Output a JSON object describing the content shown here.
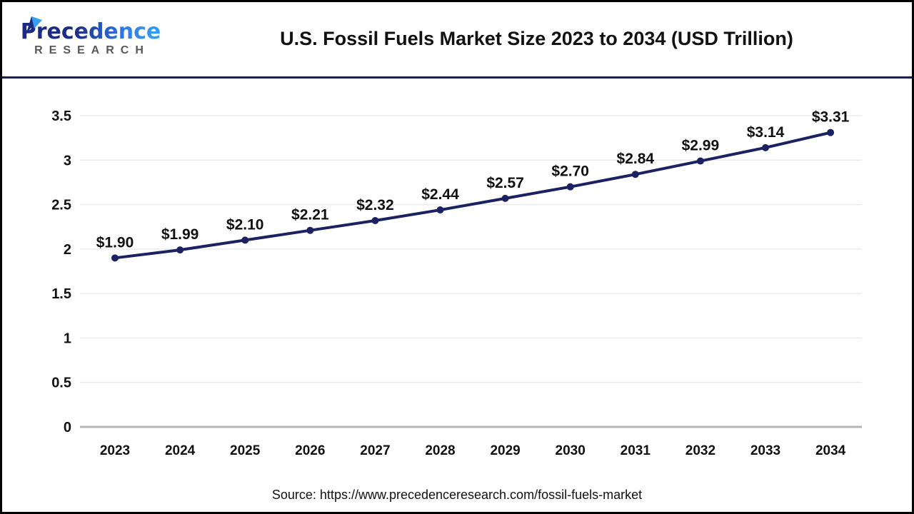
{
  "header": {
    "logo": {
      "line1": "Precedence",
      "line2": "RESEARCH"
    },
    "title": "U.S. Fossil Fuels Market Size 2023 to 2034 (USD Trillion)"
  },
  "chart_data": {
    "type": "line",
    "title": "U.S. Fossil Fuels Market Size 2023 to 2034 (USD Trillion)",
    "categories": [
      "2023",
      "2024",
      "2025",
      "2026",
      "2027",
      "2028",
      "2029",
      "2030",
      "2031",
      "2032",
      "2033",
      "2034"
    ],
    "values": [
      1.9,
      1.99,
      2.1,
      2.21,
      2.32,
      2.44,
      2.57,
      2.7,
      2.84,
      2.99,
      3.14,
      3.31
    ],
    "data_labels": [
      "$1.90",
      "$1.99",
      "$2.10",
      "$2.21",
      "$2.32",
      "$2.44",
      "$2.57",
      "$2.70",
      "$2.84",
      "$2.99",
      "$3.14",
      "$3.31"
    ],
    "unit": "USD Trillion",
    "ylim": [
      0,
      3.5
    ],
    "yticks": [
      0,
      0.5,
      1,
      1.5,
      2,
      2.5,
      3,
      3.5
    ],
    "ytick_labels": [
      "0",
      "0.5",
      "1",
      "1.5",
      "2",
      "2.5",
      "3",
      "3.5"
    ],
    "xlabel": "",
    "ylabel": "",
    "grid": true,
    "legend_position": "none",
    "line_color": "#1c2161",
    "marker": "circle"
  },
  "footer": {
    "source": "Source: https://www.precedenceresearch.com/fossil-fuels-market"
  },
  "colors": {
    "accent_navy": "#1a1f5e",
    "logo_dark_blue": "#1c2b82",
    "logo_light_blue": "#35a0f0",
    "research_gray": "#58595b",
    "gridline": "#ebebeb",
    "axis_line": "#b5b5b5",
    "label_text": "#111111"
  }
}
